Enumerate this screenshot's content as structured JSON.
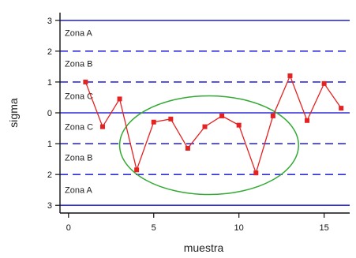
{
  "chart_data": {
    "type": "line",
    "xlabel": "muestra",
    "ylabel": "sigma",
    "xlim": [
      -0.5,
      16.5
    ],
    "ylim": [
      -3.25,
      3.25
    ],
    "x_ticks": [
      {
        "value": 0,
        "label": "0"
      },
      {
        "value": 5,
        "label": "5"
      },
      {
        "value": 10,
        "label": "10"
      },
      {
        "value": 15,
        "label": "15"
      }
    ],
    "y_ticks": [
      {
        "value": 3,
        "label": "3"
      },
      {
        "value": 2,
        "label": "2"
      },
      {
        "value": 1,
        "label": "1"
      },
      {
        "value": 0,
        "label": "0"
      },
      {
        "value": -1,
        "label": "1"
      },
      {
        "value": -2,
        "label": "2"
      },
      {
        "value": -3,
        "label": "3"
      }
    ],
    "reference_lines": [
      {
        "y": 3,
        "style": "solid",
        "color": "#2f2fd8"
      },
      {
        "y": 2,
        "style": "dashed",
        "color": "#2f2fd8"
      },
      {
        "y": 1,
        "style": "dashed",
        "color": "#2f2fd8"
      },
      {
        "y": 0,
        "style": "solid",
        "color": "#2f2fd8"
      },
      {
        "y": -1,
        "style": "dashed",
        "color": "#2f2fd8"
      },
      {
        "y": -2,
        "style": "dashed",
        "color": "#2f2fd8"
      },
      {
        "y": -3,
        "style": "solid",
        "color": "#2f2fd8"
      }
    ],
    "zones": [
      {
        "label": "Zona A",
        "y": 2.6
      },
      {
        "label": "Zona B",
        "y": 1.6
      },
      {
        "label": "Zona C",
        "y": 0.55
      },
      {
        "label": "Zona C",
        "y": -0.45
      },
      {
        "label": "Zona B",
        "y": -1.45
      },
      {
        "label": "Zona A",
        "y": -2.5
      }
    ],
    "series": [
      {
        "color": "#e52222",
        "x": [
          1,
          2,
          3,
          4,
          5,
          6,
          7,
          8,
          9,
          10,
          11,
          12,
          13,
          14,
          15,
          16
        ],
        "values": [
          1.0,
          -0.45,
          0.45,
          -1.85,
          -0.3,
          -0.2,
          -1.15,
          -0.45,
          -0.1,
          -0.4,
          -1.95,
          -0.1,
          1.2,
          -0.25,
          0.95,
          0.15
        ]
      }
    ],
    "highlight_ellipse": {
      "cx": 8.25,
      "cy": -1.05,
      "rx": 5.25,
      "ry": 1.6,
      "color": "#33aa33"
    }
  }
}
